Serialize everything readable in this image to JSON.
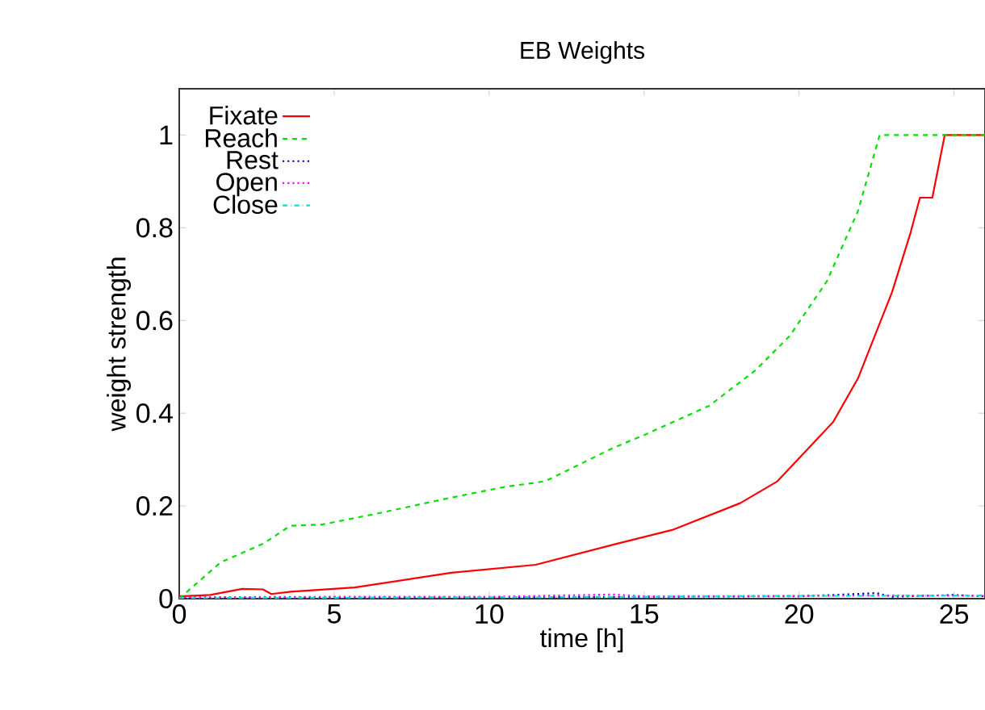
{
  "chart_data": {
    "type": "line",
    "title": "EB Weights",
    "xlabel": "time [h]",
    "ylabel": "weight strength",
    "xlim": [
      0,
      26
    ],
    "ylim": [
      0,
      1.1
    ],
    "xticks": [
      0,
      5,
      10,
      15,
      20,
      25
    ],
    "yticks": [
      0,
      0.2,
      0.4,
      0.6,
      0.8,
      1
    ],
    "grid": false,
    "legend": "top left",
    "marker": "none",
    "series": [
      {
        "name": "Fixate",
        "color": "#ff0000",
        "line_style": "solid",
        "x": [
          0,
          1,
          2.03,
          2.7,
          2.97,
          3.6,
          5.66,
          8.78,
          11.5,
          14.1,
          15.9,
          18.1,
          19.3,
          21.1,
          21.9,
          23.0,
          23.6,
          23.9,
          24.3,
          24.7,
          26
        ],
        "values": [
          0.005,
          0.008,
          0.021,
          0.02,
          0.01,
          0.015,
          0.024,
          0.056,
          0.073,
          0.118,
          0.148,
          0.206,
          0.253,
          0.381,
          0.475,
          0.661,
          0.79,
          0.865,
          0.865,
          1.0,
          1.0
        ]
      },
      {
        "name": "Reach",
        "color": "#00e000",
        "line_style": "dashed",
        "x": [
          0,
          1.33,
          2.72,
          3.58,
          4.62,
          6.35,
          8.78,
          10.5,
          11.8,
          14.0,
          15.0,
          17.1,
          18.6,
          19.7,
          20.9,
          21.9,
          22.6,
          26
        ],
        "values": [
          0,
          0.078,
          0.119,
          0.157,
          0.16,
          0.183,
          0.218,
          0.241,
          0.253,
          0.325,
          0.353,
          0.416,
          0.493,
          0.567,
          0.685,
          0.836,
          1.0,
          1.0
        ]
      },
      {
        "name": "Rest",
        "color": "#0000b0",
        "line_style": "dotted",
        "x": [
          0,
          5,
          10,
          15,
          20,
          22.5,
          23,
          25,
          26
        ],
        "values": [
          0.002,
          0.003,
          0.003,
          0.004,
          0.005,
          0.012,
          0.004,
          0.008,
          0.005
        ]
      },
      {
        "name": "Open",
        "color": "#ff00ff",
        "line_style": "dotted",
        "x": [
          0,
          5,
          10,
          14,
          15,
          20,
          23,
          26
        ],
        "values": [
          0.003,
          0.004,
          0.004,
          0.009,
          0.005,
          0.006,
          0.007,
          0.006
        ]
      },
      {
        "name": "Close",
        "color": "#00e0e0",
        "line_style": "dashdot",
        "x": [
          0,
          5,
          10,
          15,
          20,
          23,
          26
        ],
        "values": [
          0.001,
          0.002,
          0.003,
          0.004,
          0.006,
          0.006,
          0.007
        ]
      }
    ]
  }
}
